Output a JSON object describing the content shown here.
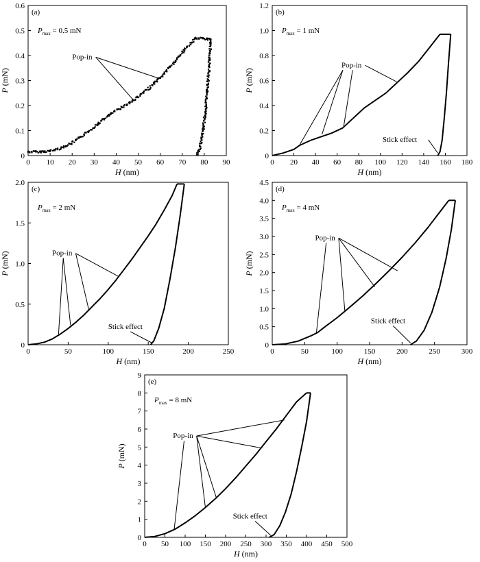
{
  "figure": {
    "ink_color": "#000000",
    "background": "#ffffff"
  },
  "chart_data": [
    {
      "type": "scatter",
      "panel": "(a)",
      "pmax": {
        "symbol": "P",
        "sub": "max",
        "value": " = 0.5 mN"
      },
      "xlabel": {
        "symbol": "H",
        "unit": " (nm)"
      },
      "ylabel": {
        "symbol": "P",
        "unit": " (mN)"
      },
      "xlim": [
        0,
        90
      ],
      "ylim": [
        0,
        0.6
      ],
      "xticks": [
        0,
        10,
        20,
        30,
        40,
        50,
        60,
        70,
        80,
        90
      ],
      "yticks": [
        0,
        0.1,
        0.2,
        0.3,
        0.4,
        0.5,
        0.6
      ],
      "ytick_labels": [
        "0",
        "0.1",
        "0.2",
        "0.3",
        "0.4",
        "0.5",
        "0.6"
      ],
      "grid": false,
      "series": [
        {
          "role": "loading",
          "points": [
            [
              0,
              0.015
            ],
            [
              5,
              0.015
            ],
            [
              10,
              0.018
            ],
            [
              15,
              0.03
            ],
            [
              20,
              0.05
            ],
            [
              25,
              0.08
            ],
            [
              30,
              0.115
            ],
            [
              35,
              0.15
            ],
            [
              40,
              0.18
            ],
            [
              45,
              0.205
            ],
            [
              50,
              0.235
            ],
            [
              55,
              0.27
            ],
            [
              60,
              0.31
            ],
            [
              65,
              0.36
            ],
            [
              70,
              0.41
            ],
            [
              75,
              0.46
            ],
            [
              76,
              0.47
            ]
          ]
        },
        {
          "role": "hold",
          "points": [
            [
              76,
              0.47
            ],
            [
              83,
              0.465
            ]
          ]
        },
        {
          "role": "unloading",
          "points": [
            [
              83,
              0.465
            ],
            [
              82.5,
              0.4
            ],
            [
              81.8,
              0.3
            ],
            [
              80.8,
              0.2
            ],
            [
              79.5,
              0.1
            ],
            [
              78,
              0.03
            ],
            [
              76.5,
              0
            ]
          ]
        }
      ],
      "annotations": [
        {
          "text": "Pop-in",
          "label_at": [
            20,
            0.385
          ],
          "targets": [
            [
              48,
              0.22
            ],
            [
              59,
              0.31
            ]
          ]
        }
      ]
    },
    {
      "type": "line",
      "panel": "(b)",
      "pmax": {
        "symbol": "P",
        "sub": "max",
        "value": " = 1 mN"
      },
      "xlabel": {
        "symbol": "H",
        "unit": " (nm)"
      },
      "ylabel": {
        "symbol": "P",
        "unit": " (mN)"
      },
      "xlim": [
        0,
        180
      ],
      "ylim": [
        0,
        1.2
      ],
      "xticks": [
        0,
        20,
        40,
        60,
        80,
        100,
        120,
        140,
        160,
        180
      ],
      "yticks": [
        0,
        0.2,
        0.4,
        0.6,
        0.8,
        1.0,
        1.2
      ],
      "ytick_labels": [
        "0",
        "0.2",
        "0.4",
        "0.6",
        "0.8",
        "1.0",
        "1.2"
      ],
      "grid": false,
      "series": [
        {
          "role": "loading",
          "points": [
            [
              0,
              0
            ],
            [
              10,
              0.02
            ],
            [
              20,
              0.05
            ],
            [
              25,
              0.08
            ],
            [
              35,
              0.12
            ],
            [
              45,
              0.15
            ],
            [
              55,
              0.18
            ],
            [
              65,
              0.22
            ],
            [
              75,
              0.3
            ],
            [
              85,
              0.38
            ],
            [
              95,
              0.44
            ],
            [
              105,
              0.5
            ],
            [
              115,
              0.58
            ],
            [
              125,
              0.66
            ],
            [
              135,
              0.75
            ],
            [
              145,
              0.86
            ],
            [
              155,
              0.97
            ]
          ]
        },
        {
          "role": "hold",
          "points": [
            [
              155,
              0.97
            ],
            [
              165,
              0.97
            ]
          ]
        },
        {
          "role": "unloading",
          "points": [
            [
              165,
              0.97
            ],
            [
              163,
              0.75
            ],
            [
              161,
              0.5
            ],
            [
              159,
              0.3
            ],
            [
              157,
              0.12
            ],
            [
              155,
              0.03
            ],
            [
              153,
              0
            ]
          ]
        }
      ],
      "annotations": [
        {
          "text": "Pop-in",
          "label_at": [
            64,
            0.705
          ],
          "targets": [
            [
              25,
              0.08
            ],
            [
              46,
              0.17
            ],
            [
              66,
              0.23
            ],
            [
              115,
              0.59
            ]
          ]
        },
        {
          "text": "Stick effect",
          "label_at": [
            102,
            0.11
          ],
          "targets": [
            [
              153,
              0.02
            ]
          ]
        }
      ]
    },
    {
      "type": "line",
      "panel": "(c)",
      "pmax": {
        "symbol": "P",
        "sub": "max",
        "value": " = 2 mN"
      },
      "xlabel": {
        "symbol": "H",
        "unit": " (nm)"
      },
      "ylabel": {
        "symbol": "P",
        "unit": " (mN)"
      },
      "xlim": [
        0,
        250
      ],
      "ylim": [
        0,
        2.0
      ],
      "xticks": [
        0,
        50,
        100,
        150,
        200,
        250
      ],
      "yticks": [
        0,
        0.5,
        1.0,
        1.5,
        2.0
      ],
      "ytick_labels": [
        "0",
        "0.5",
        "1.0",
        "1.5",
        "2.0"
      ],
      "grid": false,
      "series": [
        {
          "role": "loading",
          "points": [
            [
              0,
              0
            ],
            [
              10,
              0.01
            ],
            [
              20,
              0.03
            ],
            [
              30,
              0.07
            ],
            [
              40,
              0.13
            ],
            [
              50,
              0.2
            ],
            [
              60,
              0.28
            ],
            [
              70,
              0.37
            ],
            [
              80,
              0.47
            ],
            [
              90,
              0.57
            ],
            [
              100,
              0.68
            ],
            [
              110,
              0.8
            ],
            [
              120,
              0.93
            ],
            [
              130,
              1.06
            ],
            [
              140,
              1.2
            ],
            [
              150,
              1.34
            ],
            [
              160,
              1.49
            ],
            [
              170,
              1.66
            ],
            [
              180,
              1.84
            ],
            [
              186,
              1.98
            ]
          ]
        },
        {
          "role": "hold",
          "points": [
            [
              186,
              1.98
            ],
            [
              195,
              1.98
            ]
          ]
        },
        {
          "role": "unloading",
          "points": [
            [
              195,
              1.98
            ],
            [
              190,
              1.6
            ],
            [
              184,
              1.2
            ],
            [
              177,
              0.8
            ],
            [
              170,
              0.45
            ],
            [
              163,
              0.2
            ],
            [
              157,
              0.05
            ],
            [
              153,
              0
            ]
          ]
        }
      ],
      "annotations": [
        {
          "text": "Pop-in",
          "label_at": [
            30,
            1.1
          ],
          "targets": [
            [
              38,
              0.13
            ],
            [
              53,
              0.24
            ],
            [
              76,
              0.42
            ],
            [
              113,
              0.84
            ]
          ]
        },
        {
          "text": "Stick effect",
          "label_at": [
            100,
            0.195
          ],
          "targets": [
            [
              155,
              0.02
            ]
          ]
        }
      ]
    },
    {
      "type": "line",
      "panel": "(d)",
      "pmax": {
        "symbol": "P",
        "sub": "max",
        "value": " = 4 mN"
      },
      "xlabel": {
        "symbol": "H",
        "unit": " (nm)"
      },
      "ylabel": {
        "symbol": "P",
        "unit": " (mN)"
      },
      "xlim": [
        0,
        300
      ],
      "ylim": [
        0,
        4.5
      ],
      "xticks": [
        0,
        50,
        100,
        150,
        200,
        250,
        300
      ],
      "yticks": [
        0,
        0.5,
        1.0,
        1.5,
        2.0,
        2.5,
        3.0,
        3.5,
        4.0,
        4.5
      ],
      "ytick_labels": [
        "0",
        "0.5",
        "1.0",
        "1.5",
        "2.0",
        "2.5",
        "3.0",
        "3.5",
        "4.0",
        "4.5"
      ],
      "grid": false,
      "series": [
        {
          "role": "loading",
          "points": [
            [
              0,
              0
            ],
            [
              20,
              0.02
            ],
            [
              40,
              0.1
            ],
            [
              60,
              0.25
            ],
            [
              70,
              0.34
            ],
            [
              80,
              0.48
            ],
            [
              100,
              0.75
            ],
            [
              120,
              1.05
            ],
            [
              140,
              1.36
            ],
            [
              160,
              1.7
            ],
            [
              180,
              2.05
            ],
            [
              200,
              2.42
            ],
            [
              220,
              2.82
            ],
            [
              240,
              3.25
            ],
            [
              260,
              3.72
            ],
            [
              272,
              4.0
            ]
          ]
        },
        {
          "role": "hold",
          "points": [
            [
              272,
              4.0
            ],
            [
              282,
              4.0
            ]
          ]
        },
        {
          "role": "unloading",
          "points": [
            [
              282,
              4.0
            ],
            [
              276,
              3.2
            ],
            [
              268,
              2.4
            ],
            [
              258,
              1.6
            ],
            [
              246,
              0.9
            ],
            [
              234,
              0.4
            ],
            [
              222,
              0.1
            ],
            [
              213,
              0
            ]
          ]
        }
      ],
      "annotations": [
        {
          "text": "Pop-in",
          "label_at": [
            66,
            2.9
          ],
          "targets": [
            [
              68,
              0.32
            ],
            [
              112,
              0.9
            ],
            [
              158,
              1.6
            ],
            [
              193,
              2.05
            ]
          ]
        },
        {
          "text": "Stick effect",
          "label_at": [
            152,
            0.6
          ],
          "targets": [
            [
              213,
              0.05
            ]
          ]
        }
      ]
    },
    {
      "type": "line",
      "panel": "(e)",
      "pmax": {
        "symbol": "P",
        "sub": "max",
        "value": " = 8 mN"
      },
      "xlabel": {
        "symbol": "H",
        "unit": " (nm)"
      },
      "ylabel": {
        "symbol": "P",
        "unit": " (mN)"
      },
      "xlim": [
        0,
        500
      ],
      "ylim": [
        0,
        9
      ],
      "xticks": [
        0,
        50,
        100,
        150,
        200,
        250,
        300,
        350,
        400,
        450,
        500
      ],
      "yticks": [
        0,
        1,
        2,
        3,
        4,
        5,
        6,
        7,
        8,
        9
      ],
      "ytick_labels": [
        "0",
        "1",
        "2",
        "3",
        "4",
        "5",
        "6",
        "7",
        "8",
        "9"
      ],
      "grid": false,
      "series": [
        {
          "role": "loading",
          "points": [
            [
              0,
              0
            ],
            [
              25,
              0.05
            ],
            [
              50,
              0.2
            ],
            [
              75,
              0.45
            ],
            [
              100,
              0.8
            ],
            [
              125,
              1.2
            ],
            [
              150,
              1.65
            ],
            [
              175,
              2.15
            ],
            [
              200,
              2.7
            ],
            [
              225,
              3.3
            ],
            [
              250,
              3.95
            ],
            [
              275,
              4.6
            ],
            [
              300,
              5.3
            ],
            [
              325,
              6.0
            ],
            [
              350,
              6.75
            ],
            [
              375,
              7.5
            ],
            [
              400,
              8.0
            ]
          ]
        },
        {
          "role": "hold",
          "points": [
            [
              400,
              8.0
            ],
            [
              410,
              8.0
            ]
          ]
        },
        {
          "role": "unloading",
          "points": [
            [
              410,
              8.0
            ],
            [
              400,
              6.4
            ],
            [
              388,
              5.0
            ],
            [
              376,
              3.7
            ],
            [
              362,
              2.4
            ],
            [
              348,
              1.4
            ],
            [
              334,
              0.65
            ],
            [
              320,
              0.15
            ],
            [
              308,
              0
            ]
          ]
        }
      ],
      "annotations": [
        {
          "text": "Pop-in",
          "label_at": [
            70,
            5.5
          ],
          "targets": [
            [
              73,
              0.45
            ],
            [
              150,
              1.65
            ],
            [
              177,
              2.2
            ],
            [
              288,
              4.95
            ],
            [
              345,
              6.5
            ]
          ]
        },
        {
          "text": "Stick effect",
          "label_at": [
            218,
            1.05
          ],
          "targets": [
            [
              312,
              0.1
            ]
          ]
        }
      ]
    }
  ]
}
